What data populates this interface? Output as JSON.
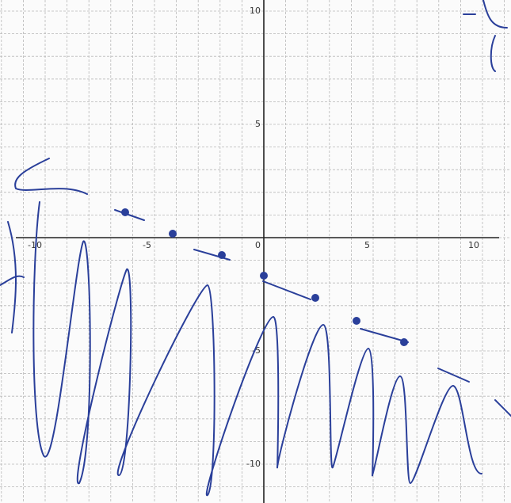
{
  "graph": {
    "x_ticks": [
      -10,
      -5,
      0,
      5,
      10
    ],
    "y_ticks": [
      10,
      5,
      -5,
      -10
    ]
  }
}
